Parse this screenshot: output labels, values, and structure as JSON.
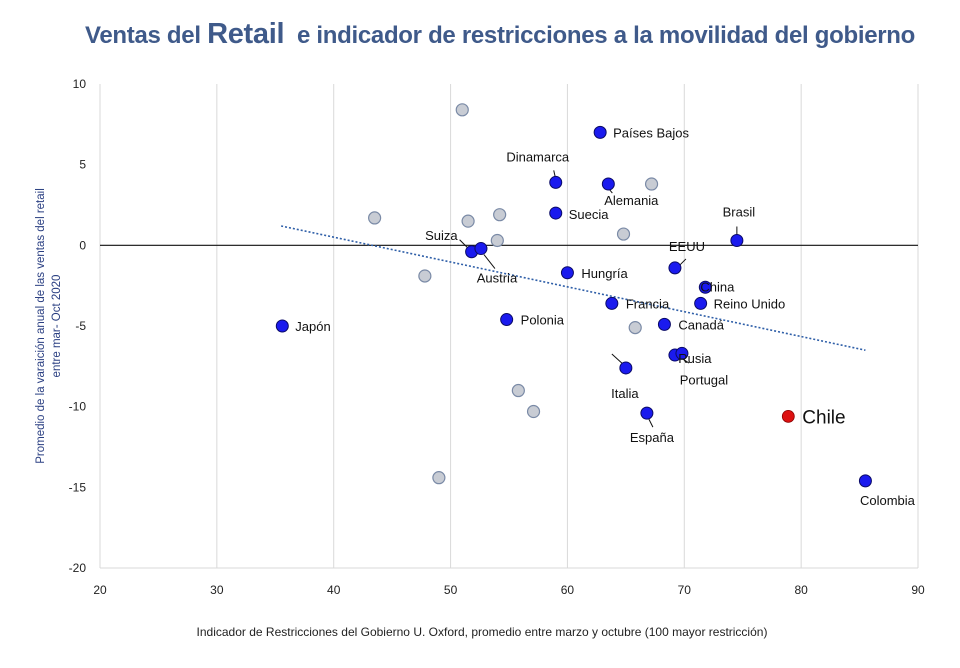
{
  "title": {
    "part1": "Ventas del ",
    "part2": "Retail",
    "part3": "  e indicador de restricciones a la movilidad del gobierno"
  },
  "chart_data": {
    "type": "scatter",
    "xlabel": "Indicador de Restricciones del Gobierno U. Oxford, promedio entre marzo y octubre (100  mayor restricción)",
    "ylabel_line1": "Promedio de la varaición anual de las ventas del retail",
    "ylabel_line2": "entre mar- Oct 2020",
    "xlim": [
      20,
      90
    ],
    "ylim": [
      -20,
      10
    ],
    "xticks": [
      20,
      30,
      40,
      50,
      60,
      70,
      80,
      90
    ],
    "yticks": [
      10,
      5,
      0,
      -5,
      -10,
      -15,
      -20
    ],
    "grid": "vertical",
    "colors": {
      "labeled": "#1a1aee",
      "unlabeled": "#c8ccd4",
      "chile": "#dd1111",
      "trend": "#2f5fa8"
    },
    "trendline": {
      "x1": 35.5,
      "y1": 1.2,
      "x2": 85.5,
      "y2": -6.5
    },
    "labeled_points": [
      {
        "name": "Japón",
        "x": 35.6,
        "y": -5.0
      },
      {
        "name": "Países Bajos",
        "x": 62.8,
        "y": 7.0
      },
      {
        "name": "Dinamarca",
        "x": 59.0,
        "y": 3.9
      },
      {
        "name": "Alemania",
        "x": 63.5,
        "y": 3.8
      },
      {
        "name": "Suecia",
        "x": 59.0,
        "y": 2.0
      },
      {
        "name": "Brasil",
        "x": 74.5,
        "y": 0.3
      },
      {
        "name": "Suiza",
        "x": 51.8,
        "y": -0.4
      },
      {
        "name": "Austria",
        "x": 52.6,
        "y": -0.2
      },
      {
        "name": "EEUU",
        "x": 69.2,
        "y": -1.4
      },
      {
        "name": "Hungría",
        "x": 60.0,
        "y": -1.7
      },
      {
        "name": "China",
        "x": 71.8,
        "y": -2.6
      },
      {
        "name": "Francia",
        "x": 63.8,
        "y": -3.6
      },
      {
        "name": "Reino Unido",
        "x": 71.4,
        "y": -3.6
      },
      {
        "name": "Polonia",
        "x": 54.8,
        "y": -4.6
      },
      {
        "name": "Canadá",
        "x": 68.3,
        "y": -4.9
      },
      {
        "name": "Rusia",
        "x": 69.2,
        "y": -6.8
      },
      {
        "name": "Portugal",
        "x": 69.8,
        "y": -6.7
      },
      {
        "name": "Italia",
        "x": 65.0,
        "y": -7.6
      },
      {
        "name": "España",
        "x": 66.8,
        "y": -10.4
      },
      {
        "name": "Colombia",
        "x": 85.5,
        "y": -14.6
      }
    ],
    "chile_point": {
      "name": "Chile",
      "x": 78.9,
      "y": -10.6
    },
    "unlabeled_points": [
      {
        "x": 51.0,
        "y": 8.4
      },
      {
        "x": 67.2,
        "y": 3.8
      },
      {
        "x": 43.5,
        "y": 1.7
      },
      {
        "x": 51.5,
        "y": 1.5
      },
      {
        "x": 54.2,
        "y": 1.9
      },
      {
        "x": 54.0,
        "y": 0.3
      },
      {
        "x": 64.8,
        "y": 0.7
      },
      {
        "x": 47.8,
        "y": -1.9
      },
      {
        "x": 65.8,
        "y": -5.1
      },
      {
        "x": 55.8,
        "y": -9.0
      },
      {
        "x": 57.1,
        "y": -10.3
      },
      {
        "x": 49.0,
        "y": -14.4
      }
    ]
  }
}
